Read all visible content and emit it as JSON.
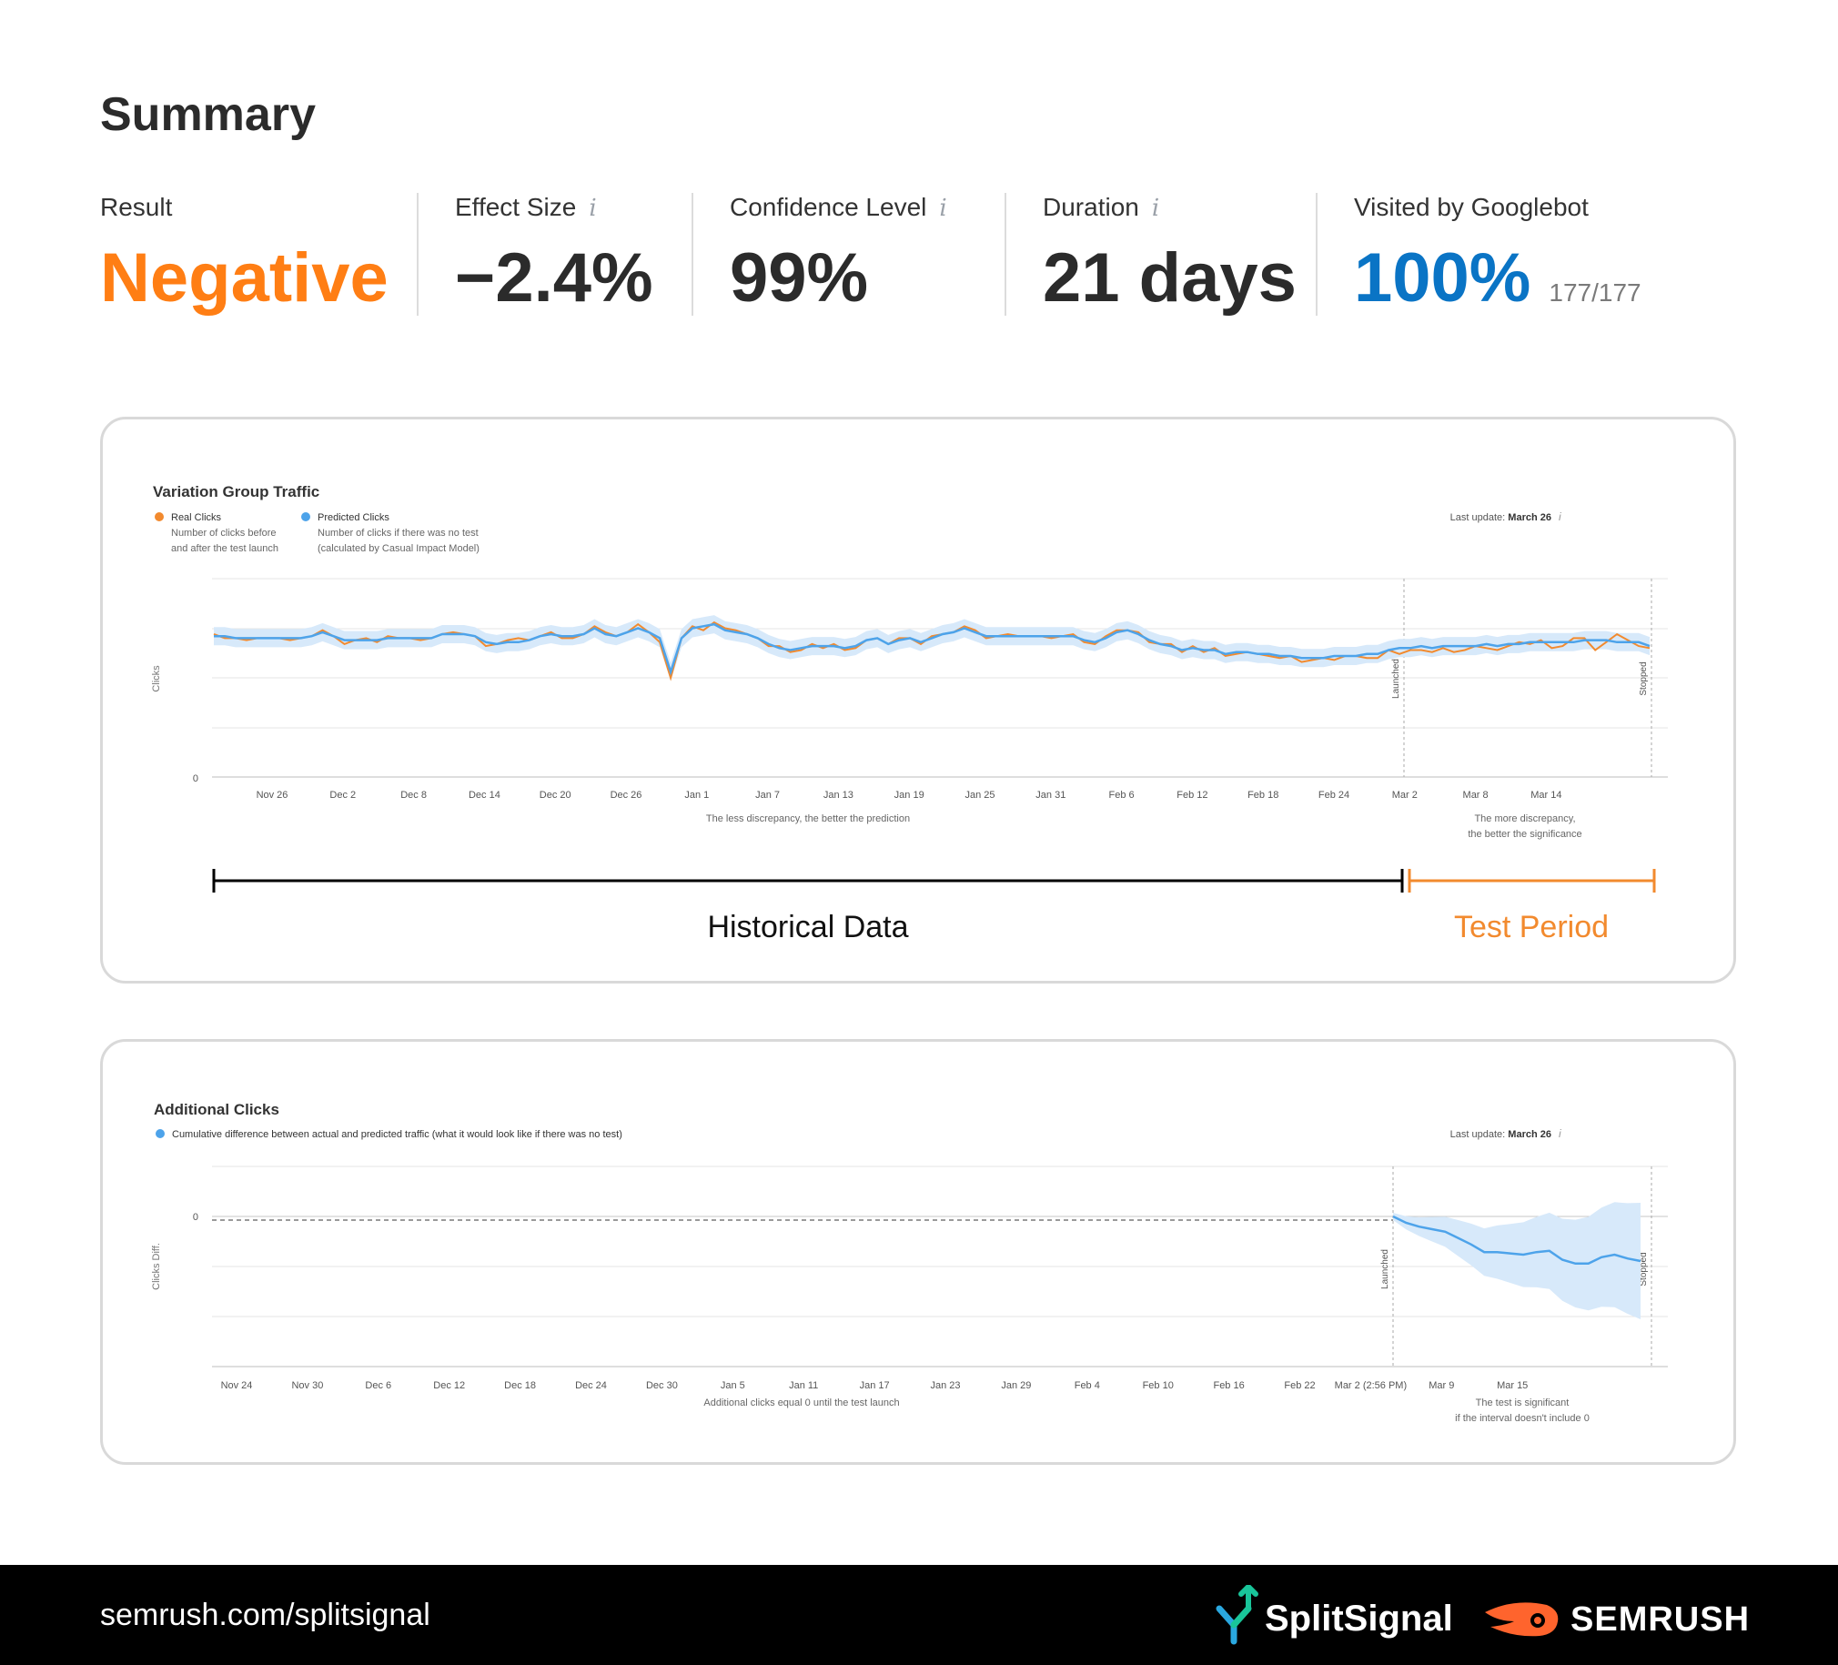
{
  "summary": {
    "title": "Summary",
    "metrics": [
      {
        "label": "Result",
        "value": "Negative",
        "color": "#ff7e14"
      },
      {
        "label": "Effect Size",
        "value": "−2.4%",
        "color": "#2b2b2b",
        "info_icon": "info-icon"
      },
      {
        "label": "Confidence Level",
        "value": "99%",
        "color": "#2b2b2b",
        "info_icon": "info-icon"
      },
      {
        "label": "Duration",
        "value": "21 days",
        "color": "#2b2b2b",
        "info_icon": "info-icon"
      },
      {
        "label": "Visited by Googlebot",
        "value": "100%",
        "sub": "177/177",
        "color": "#0a74c5"
      }
    ]
  },
  "traffic_chart": {
    "title": "Variation Group Traffic",
    "legend": [
      {
        "name": "Real Clicks",
        "desc1": "Number of clicks before",
        "desc2": "and after the test launch",
        "color": "#f28a2e"
      },
      {
        "name": "Predicted Clicks",
        "desc1": "Number of clicks if there was no test",
        "desc2": "(calculated by Casual Impact Model)",
        "color": "#4da3ea"
      }
    ],
    "last_update_label": "Last update:",
    "last_update_value": "March 26",
    "y_axis_label": "Clicks",
    "y_zero": "0",
    "x_ticks": [
      "Nov 26",
      "Dec 2",
      "Dec 8",
      "Dec 14",
      "Dec 20",
      "Dec 26",
      "Jan 1",
      "Jan 7",
      "Jan 13",
      "Jan 19",
      "Jan 25",
      "Jan 31",
      "Feb 6",
      "Feb 12",
      "Feb 18",
      "Feb 24",
      "Mar 2",
      "Mar 8",
      "Mar 14"
    ],
    "launched_label": "Launched",
    "stopped_label": "Stopped",
    "note_left": "The less discrepancy, the better the prediction",
    "note_right_1": "The more discrepancy,",
    "note_right_2": "the better the significance",
    "historical_label": "Historical Data",
    "test_label": "Test Period"
  },
  "clicks_chart": {
    "title": "Additional Clicks",
    "legend_text": "Cumulative difference between actual and predicted traffic (what it would look like if there was no test)",
    "last_update_label": "Last update:",
    "last_update_value": "March 26",
    "y_axis_label": "Clicks Diff.",
    "y_zero": "0",
    "x_ticks": [
      "Nov 24",
      "Nov 30",
      "Dec 6",
      "Dec 12",
      "Dec 18",
      "Dec 24",
      "Dec 30",
      "Jan 5",
      "Jan 11",
      "Jan 17",
      "Jan 23",
      "Jan 29",
      "Feb 4",
      "Feb 10",
      "Feb 16",
      "Feb 22",
      "Mar 2 (2:56 PM)",
      "Mar 9",
      "Mar 15"
    ],
    "launched_label": "Launched",
    "stopped_label": "Stopped",
    "note_left": "Additional clicks equal 0 until the test launch",
    "note_right_1": "The test is significant",
    "note_right_2": "if the interval doesn't include 0"
  },
  "chart_data": [
    {
      "type": "line",
      "title": "Variation Group Traffic",
      "ylabel": "Clicks",
      "series": [
        {
          "name": "Real Clicks",
          "values": [
            0.72,
            0.7,
            0.7,
            0.69,
            0.7,
            0.7,
            0.7,
            0.69,
            0.7,
            0.71,
            0.74,
            0.71,
            0.67,
            0.69,
            0.7,
            0.68,
            0.71,
            0.7,
            0.7,
            0.69,
            0.7,
            0.72,
            0.73,
            0.72,
            0.71,
            0.66,
            0.67,
            0.69,
            0.7,
            0.69,
            0.71,
            0.73,
            0.7,
            0.7,
            0.72,
            0.76,
            0.73,
            0.71,
            0.73,
            0.77,
            0.73,
            0.68,
            0.5,
            0.7,
            0.76,
            0.74,
            0.78,
            0.75,
            0.74,
            0.72,
            0.7,
            0.66,
            0.66,
            0.63,
            0.64,
            0.67,
            0.65,
            0.67,
            0.64,
            0.65,
            0.69,
            0.7,
            0.67,
            0.7,
            0.7,
            0.67,
            0.71,
            0.72,
            0.73,
            0.76,
            0.74,
            0.7,
            0.71,
            0.72,
            0.71,
            0.71,
            0.71,
            0.7,
            0.71,
            0.72,
            0.68,
            0.67,
            0.71,
            0.74,
            0.74,
            0.73,
            0.68,
            0.67,
            0.67,
            0.63,
            0.66,
            0.63,
            0.65,
            0.61,
            0.62,
            0.63,
            0.62,
            0.61,
            0.6,
            0.61,
            0.58,
            0.59,
            0.6,
            0.59,
            0.61,
            0.61,
            0.6,
            0.6,
            0.64,
            0.62,
            0.64,
            0.64,
            0.63,
            0.65,
            0.63,
            0.64,
            0.66,
            0.65,
            0.64,
            0.66,
            0.68,
            0.67,
            0.69,
            0.65,
            0.66,
            0.7,
            0.7,
            0.64,
            0.68,
            0.72,
            0.69,
            0.66,
            0.65
          ],
          "color": "#f28a2e"
        },
        {
          "name": "Predicted Clicks",
          "values": [
            0.71,
            0.71,
            0.7,
            0.7,
            0.7,
            0.7,
            0.7,
            0.7,
            0.7,
            0.71,
            0.73,
            0.71,
            0.69,
            0.69,
            0.69,
            0.69,
            0.7,
            0.7,
            0.7,
            0.7,
            0.7,
            0.72,
            0.72,
            0.72,
            0.71,
            0.68,
            0.67,
            0.68,
            0.68,
            0.69,
            0.71,
            0.72,
            0.71,
            0.71,
            0.72,
            0.75,
            0.72,
            0.71,
            0.73,
            0.75,
            0.73,
            0.7,
            0.53,
            0.7,
            0.75,
            0.76,
            0.77,
            0.74,
            0.73,
            0.72,
            0.7,
            0.67,
            0.65,
            0.64,
            0.65,
            0.66,
            0.66,
            0.66,
            0.65,
            0.66,
            0.69,
            0.7,
            0.67,
            0.69,
            0.7,
            0.68,
            0.7,
            0.72,
            0.73,
            0.75,
            0.73,
            0.71,
            0.71,
            0.71,
            0.71,
            0.71,
            0.71,
            0.71,
            0.71,
            0.71,
            0.69,
            0.68,
            0.7,
            0.73,
            0.74,
            0.72,
            0.69,
            0.67,
            0.66,
            0.64,
            0.65,
            0.64,
            0.64,
            0.62,
            0.63,
            0.63,
            0.62,
            0.62,
            0.61,
            0.61,
            0.6,
            0.6,
            0.6,
            0.61,
            0.61,
            0.61,
            0.62,
            0.62,
            0.64,
            0.65,
            0.65,
            0.66,
            0.65,
            0.66,
            0.66,
            0.66,
            0.66,
            0.67,
            0.66,
            0.67,
            0.67,
            0.68,
            0.68,
            0.68,
            0.68,
            0.68,
            0.69,
            0.69,
            0.69,
            0.68,
            0.68,
            0.68,
            0.66
          ],
          "color": "#4da3ea"
        }
      ]
    },
    {
      "type": "area",
      "title": "Additional Clicks",
      "ylabel": "Clicks Diff.",
      "series": [
        {
          "name": "Cumulative difference",
          "values": [
            0,
            -0.05,
            -0.08,
            -0.1,
            -0.12,
            -0.17,
            -0.22,
            -0.28,
            -0.28,
            -0.29,
            -0.3,
            -0.28,
            -0.27,
            -0.34,
            -0.37,
            -0.37,
            -0.32,
            -0.3,
            -0.33,
            -0.35
          ],
          "color": "#4da3ea"
        }
      ]
    }
  ],
  "footer": {
    "url": "semrush.com/splitsignal",
    "brand1": "SplitSignal",
    "brand2": "SEMRUSH",
    "footer_bg": "#000000"
  }
}
